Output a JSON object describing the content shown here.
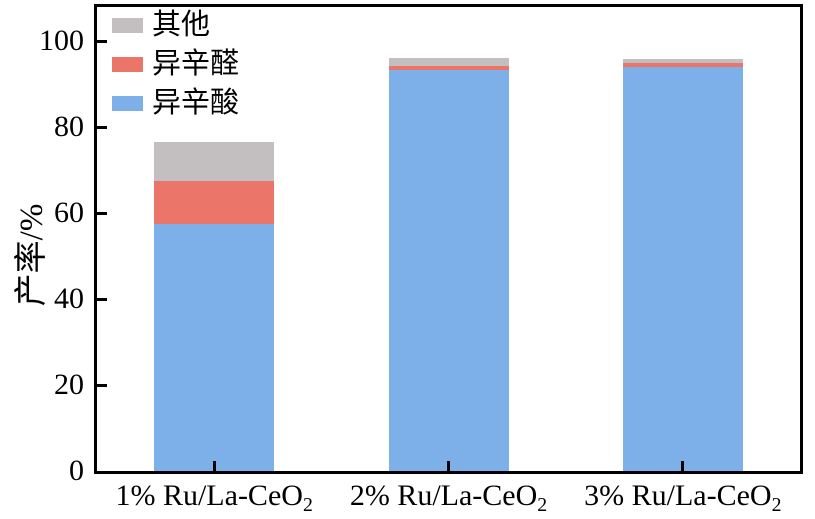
{
  "figure": {
    "background": "#ffffff",
    "axis_color": "#000000"
  },
  "axes": {
    "y": {
      "title": "产率/%",
      "ticks": [
        0,
        20,
        40,
        60,
        80,
        100
      ],
      "lim": [
        0,
        108
      ]
    },
    "x": {
      "categories": [
        {
          "prefix": "1% Ru/La-CeO",
          "sub": "2"
        },
        {
          "prefix": "2% Ru/La-CeO",
          "sub": "2"
        },
        {
          "prefix": "3% Ru/La-CeO",
          "sub": "2"
        }
      ]
    }
  },
  "legend": {
    "items": [
      {
        "label": "其他",
        "color": "#c3bfc1"
      },
      {
        "label": "异辛醛",
        "color": "#ec756a"
      },
      {
        "label": "异辛酸",
        "color": "#7dafe8"
      }
    ]
  },
  "chart_data": {
    "type": "bar",
    "stacked": true,
    "title": "",
    "xlabel": "",
    "ylabel": "产率/%",
    "categories": [
      "1% Ru/La-CeO₂",
      "2% Ru/La-CeO₂",
      "3% Ru/La-CeO₂"
    ],
    "ylim": [
      0,
      108
    ],
    "grid": false,
    "legend_position": "upper left",
    "series": [
      {
        "name": "异辛酸",
        "color": "#7dafe8",
        "values": [
          57.5,
          93.4,
          94.1
        ]
      },
      {
        "name": "异辛醛",
        "color": "#ec756a",
        "values": [
          10.0,
          0.9,
          0.8
        ]
      },
      {
        "name": "其他",
        "color": "#c3bfc1",
        "values": [
          9.0,
          1.8,
          1.1
        ]
      }
    ]
  }
}
